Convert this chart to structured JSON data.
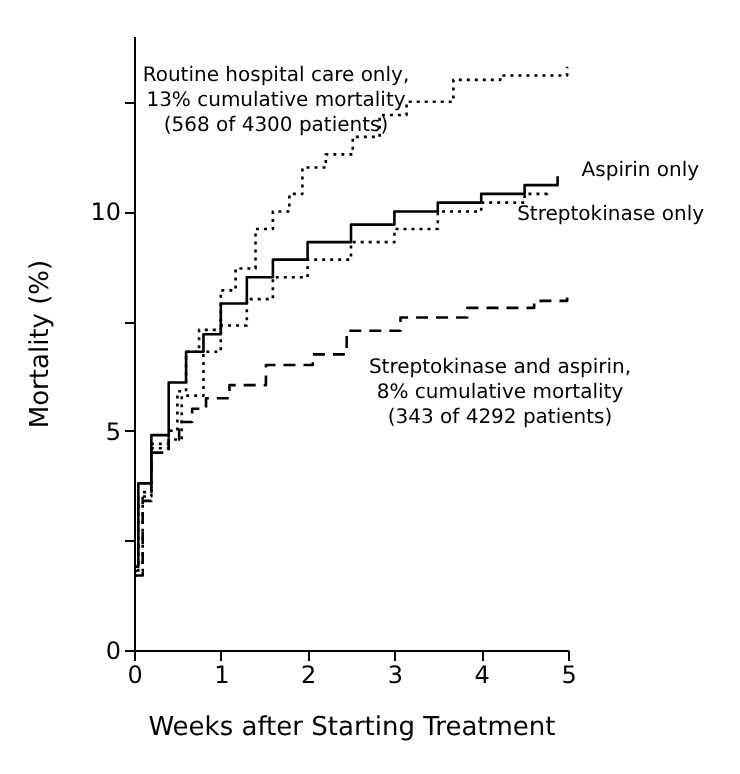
{
  "chart_data": {
    "type": "step",
    "xlabel": "Weeks after Starting Treatment",
    "ylabel": "Mortality (%)",
    "xlim": [
      0,
      5
    ],
    "xticks": [
      0,
      1,
      2,
      3,
      4,
      5
    ],
    "ylim": [
      0,
      14
    ],
    "yticks": [
      0,
      {
        "value": 2.5,
        "label": null
      },
      5,
      {
        "value": 7.5,
        "label": null
      },
      10,
      {
        "value": 12.5,
        "label": null
      }
    ],
    "series": [
      {
        "color": "#000000",
        "line_style": "dotted",
        "x": [
          0,
          0.1,
          0.2,
          0.4,
          0.5,
          0.6,
          0.75,
          1.0,
          1.17,
          1.4,
          1.6,
          1.79,
          1.94,
          2.21,
          2.52,
          2.83,
          3.14,
          3.68,
          4.22,
          4.49,
          4.99
        ],
        "values": [
          1.8,
          3.6,
          4.7,
          5.0,
          5.9,
          6.8,
          7.3,
          8.2,
          8.7,
          9.6,
          10.0,
          10.4,
          11.0,
          11.3,
          11.7,
          12.2,
          12.5,
          13.0,
          13.1,
          13.1,
          13.3
        ]
      },
      {
        "name": "Aspirin only",
        "color": "#000000",
        "line_style": "solid",
        "x": [
          0,
          0.05,
          0.2,
          0.4,
          0.6,
          0.8,
          1.0,
          1.3,
          1.6,
          2.0,
          2.5,
          3.0,
          3.5,
          4.0,
          4.5,
          4.88
        ],
        "values": [
          1.9,
          3.8,
          4.9,
          6.1,
          6.8,
          7.2,
          7.9,
          8.5,
          8.9,
          9.3,
          9.7,
          10.0,
          10.2,
          10.4,
          10.6,
          10.8
        ]
      },
      {
        "name": "Streptokinase only",
        "color": "#000000",
        "line_style": "dotted",
        "x": [
          0,
          0.05,
          0.2,
          0.4,
          0.55,
          0.8,
          1.0,
          1.3,
          1.6,
          2.0,
          2.5,
          3.0,
          3.5,
          4.0,
          4.5,
          4.76
        ],
        "values": [
          1.7,
          3.5,
          4.6,
          4.8,
          5.8,
          6.8,
          7.4,
          8.0,
          8.5,
          8.9,
          9.3,
          9.6,
          10.0,
          10.2,
          10.4,
          10.5
        ]
      },
      {
        "color": "#000000",
        "line_style": "dashed",
        "x": [
          0,
          0.1,
          0.2,
          0.4,
          0.52,
          0.67,
          0.83,
          1.1,
          1.52,
          2.06,
          2.45,
          3.07,
          3.84,
          4.61,
          4.99
        ],
        "values": [
          1.7,
          3.4,
          4.5,
          4.8,
          5.2,
          5.5,
          5.74,
          6.04,
          6.5,
          6.74,
          7.28,
          7.58,
          7.8,
          7.96,
          8.04
        ]
      }
    ],
    "annotations": [
      "Routine hospital care only,\n13% cumulative mortality\n(568 of 4300 patients)",
      "Streptokinase and aspirin,\n8% cumulative mortality\n(343 of 4292 patients)"
    ]
  }
}
